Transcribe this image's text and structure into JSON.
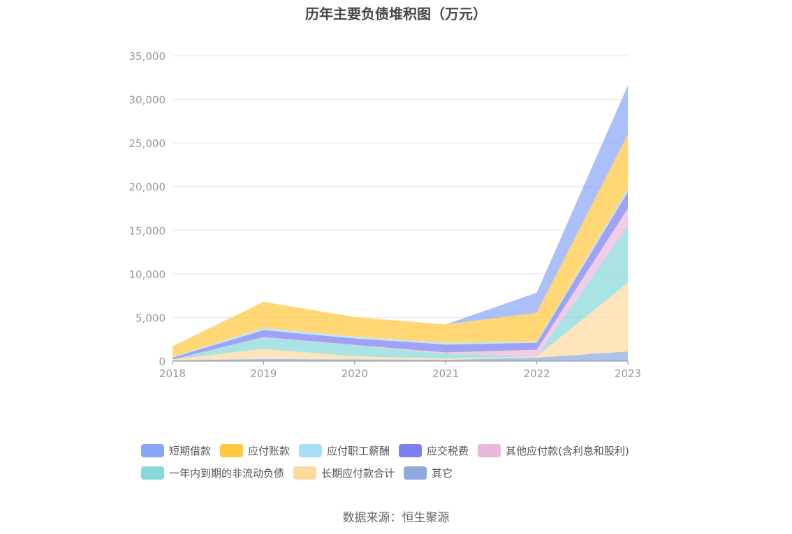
{
  "title": "历年主要负债堆积图（万元）",
  "source": "数据来源：恒生聚源",
  "chart_data": {
    "type": "area",
    "stacked": true,
    "categories": [
      "2018",
      "2019",
      "2020",
      "2021",
      "2022",
      "2023"
    ],
    "ylim": [
      0,
      35000
    ],
    "yticks": [
      0,
      5000,
      10000,
      15000,
      20000,
      25000,
      30000,
      35000
    ],
    "ytick_labels": [
      "0",
      "5,000",
      "10,000",
      "15,000",
      "20,000",
      "25,000",
      "30,000",
      "35,000"
    ],
    "grid": true,
    "legend_position": "bottom",
    "series": [
      {
        "name": "其它",
        "color": "#8eaadc",
        "values": [
          100,
          250,
          200,
          150,
          400,
          1100
        ]
      },
      {
        "name": "长期应付款合计",
        "color": "#fdd9a0",
        "values": [
          100,
          1150,
          350,
          150,
          150,
          7900
        ]
      },
      {
        "name": "一年内到期的非流动负债",
        "color": "#88d8d8",
        "values": [
          0,
          1300,
          1250,
          550,
          0,
          6500
        ]
      },
      {
        "name": "其他应付款(含利息和股利)",
        "color": "#eab8dc",
        "values": [
          0,
          50,
          50,
          150,
          750,
          2000
        ]
      },
      {
        "name": "应交税费",
        "color": "#7b7ff0",
        "values": [
          200,
          800,
          750,
          900,
          800,
          1900
        ]
      },
      {
        "name": "应付职工薪酬",
        "color": "#a8def6",
        "values": [
          100,
          250,
          200,
          200,
          150,
          400
        ]
      },
      {
        "name": "应付账款",
        "color": "#ffc940",
        "values": [
          1200,
          3000,
          2250,
          2100,
          3300,
          6200
        ]
      },
      {
        "name": "短期借款",
        "color": "#8aa6f8",
        "values": [
          0,
          0,
          0,
          0,
          2300,
          5600
        ]
      }
    ]
  },
  "legend": {
    "row1": [
      {
        "name": "短期借款",
        "color": "#8aa6f8"
      },
      {
        "name": "应付账款",
        "color": "#ffc940"
      },
      {
        "name": "应付职工薪酬",
        "color": "#a8def6"
      },
      {
        "name": "应交税费",
        "color": "#7b7ff0"
      },
      {
        "name": "其他应付款(含利息和股利)",
        "color": "#eab8dc"
      }
    ],
    "row2": [
      {
        "name": "一年内到期的非流动负债",
        "color": "#88d8d8"
      },
      {
        "name": "长期应付款合计",
        "color": "#fdd9a0"
      },
      {
        "name": "其它",
        "color": "#8eaadc"
      }
    ]
  }
}
